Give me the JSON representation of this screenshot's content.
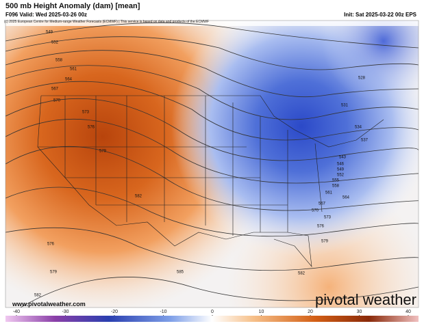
{
  "header": {
    "title": "500 mb Height Anomaly (dam) [mean]",
    "valid": "F096 Valid: Wed 2025-03-26 00z",
    "init": "Init: Sat 2025-03-22 00z EPS",
    "credit": "(c) 2025 European Centre for Medium-range Weather Forecasts (ECMWF) | This service is based on data and products of the ECMWF"
  },
  "map": {
    "contour_labels": [
      549,
      552,
      558,
      561,
      564,
      567,
      570,
      573,
      576,
      579,
      582,
      576,
      579,
      582,
      585,
      582,
      579,
      576,
      573,
      570,
      567,
      564,
      561,
      558,
      555,
      552,
      549,
      546,
      543,
      537,
      534,
      531,
      528
    ]
  },
  "footer": {
    "website": "www.pivotalweather.com",
    "logo": "pivotal weather"
  },
  "colorbar": {
    "ticks": [
      -40,
      -30,
      -20,
      -10,
      0,
      10,
      20,
      30,
      40
    ]
  }
}
